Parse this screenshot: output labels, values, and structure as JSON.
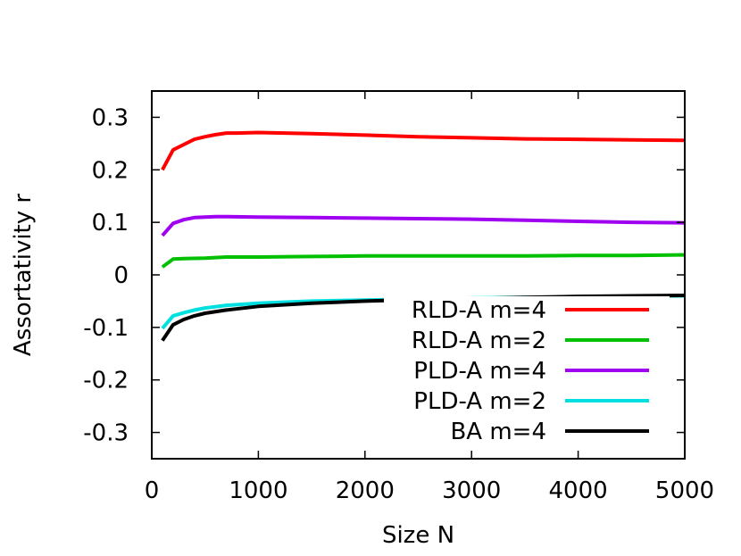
{
  "chart_data": {
    "type": "line",
    "title": "",
    "xlabel": "Size N",
    "ylabel": "Assortativity r",
    "xlim": [
      0,
      5000
    ],
    "ylim": [
      -0.35,
      0.35
    ],
    "xticks": [
      0,
      1000,
      2000,
      3000,
      4000,
      5000
    ],
    "xtick_labels": [
      "0",
      "1000",
      "2000",
      "3000",
      "4000",
      "5000"
    ],
    "yticks": [
      0.3,
      0.2,
      0.1,
      0,
      -0.1,
      -0.2,
      -0.3
    ],
    "ytick_labels": [
      "0.3",
      "0.2",
      "0.1",
      "0",
      "-0.1",
      "-0.2",
      "-0.3"
    ],
    "grid": false,
    "legend_position": "bottom-right",
    "series": [
      {
        "name": "RLD-A m=4",
        "color": "#ff0000",
        "x": [
          100,
          200,
          300,
          400,
          500,
          600,
          700,
          800,
          1000,
          1500,
          2000,
          2500,
          3000,
          3500,
          4000,
          4500,
          5000
        ],
        "y": [
          0.2,
          0.238,
          0.248,
          0.258,
          0.263,
          0.267,
          0.27,
          0.27,
          0.271,
          0.269,
          0.266,
          0.263,
          0.261,
          0.259,
          0.258,
          0.257,
          0.256
        ]
      },
      {
        "name": "RLD-A m=2",
        "color": "#00c000",
        "x": [
          100,
          200,
          300,
          500,
          700,
          1000,
          1500,
          2000,
          2500,
          3000,
          3500,
          4000,
          4500,
          5000
        ],
        "y": [
          0.015,
          0.03,
          0.031,
          0.032,
          0.034,
          0.034,
          0.035,
          0.036,
          0.036,
          0.036,
          0.036,
          0.037,
          0.037,
          0.038
        ]
      },
      {
        "name": "PLD-A m=4",
        "color": "#a000f0",
        "x": [
          100,
          200,
          300,
          400,
          500,
          600,
          700,
          1000,
          1500,
          2000,
          2500,
          3000,
          3500,
          4000,
          4500,
          5000
        ],
        "y": [
          0.075,
          0.098,
          0.105,
          0.109,
          0.11,
          0.111,
          0.111,
          0.11,
          0.109,
          0.108,
          0.107,
          0.106,
          0.104,
          0.102,
          0.1,
          0.099
        ]
      },
      {
        "name": "PLD-A m=2",
        "color": "#00e0e0",
        "x": [
          100,
          200,
          300,
          400,
          500,
          700,
          1000,
          1500,
          2000,
          2500,
          3000,
          3500,
          4000,
          4500,
          5000
        ],
        "y": [
          -0.102,
          -0.078,
          -0.072,
          -0.067,
          -0.063,
          -0.058,
          -0.054,
          -0.05,
          -0.048,
          -0.046,
          -0.044,
          -0.043,
          -0.042,
          -0.041,
          -0.04
        ]
      },
      {
        "name": "BA m=4",
        "color": "#000000",
        "x": [
          100,
          200,
          300,
          400,
          500,
          700,
          1000,
          1500,
          2000,
          2500,
          3000,
          3500,
          4000,
          4500,
          5000
        ],
        "y": [
          -0.125,
          -0.095,
          -0.085,
          -0.078,
          -0.073,
          -0.067,
          -0.06,
          -0.054,
          -0.05,
          -0.047,
          -0.045,
          -0.043,
          -0.041,
          -0.04,
          -0.039
        ]
      }
    ]
  }
}
